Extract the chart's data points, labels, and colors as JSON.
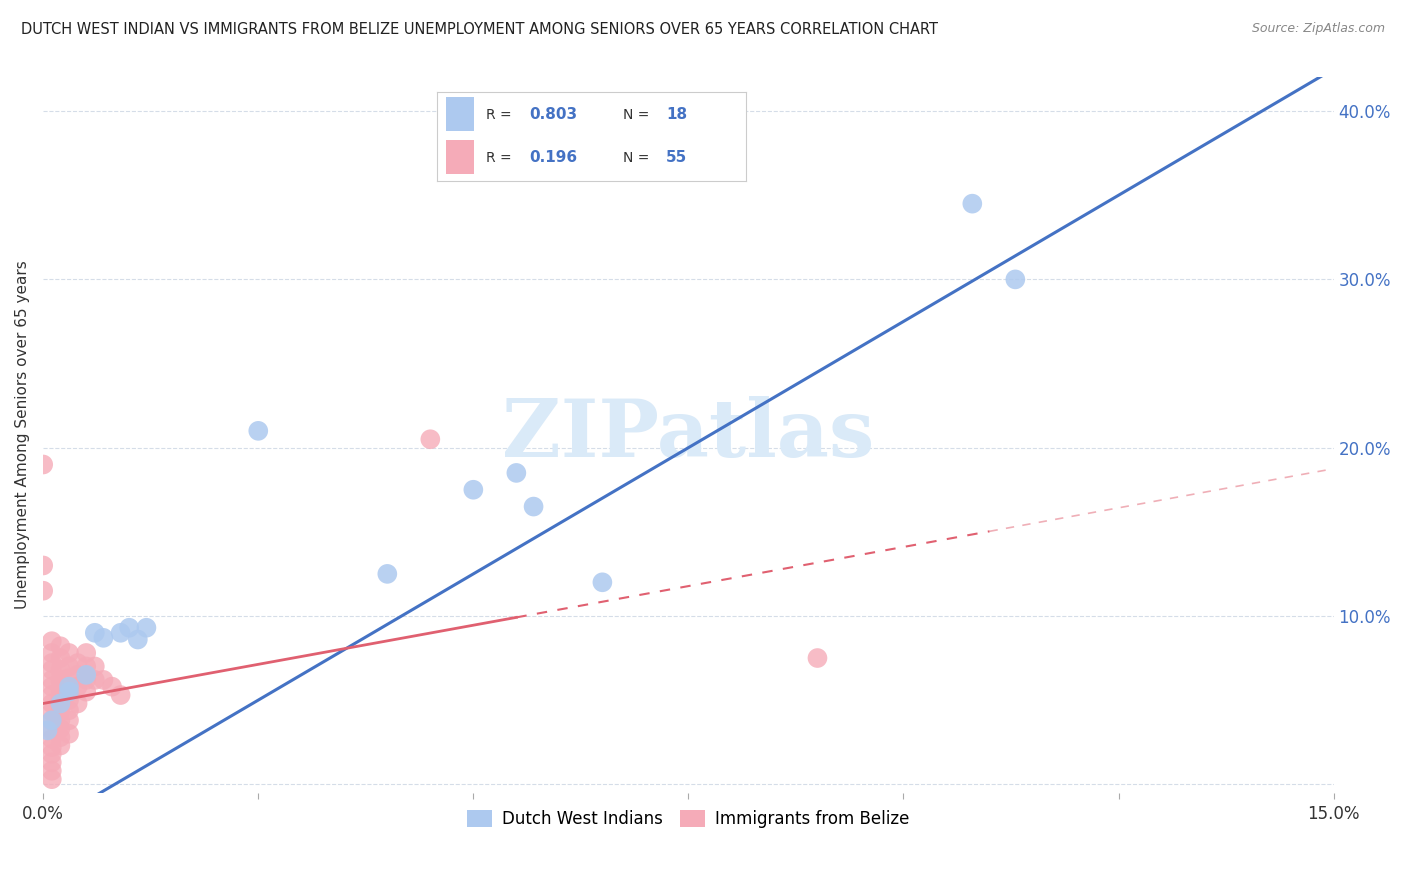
{
  "title": "DUTCH WEST INDIAN VS IMMIGRANTS FROM BELIZE UNEMPLOYMENT AMONG SENIORS OVER 65 YEARS CORRELATION CHART",
  "source": "Source: ZipAtlas.com",
  "ylabel": "Unemployment Among Seniors over 65 years",
  "xmin": 0.0,
  "xmax": 0.15,
  "ymin": -0.005,
  "ymax": 0.42,
  "xticks": [
    0.0,
    0.025,
    0.05,
    0.075,
    0.1,
    0.125,
    0.15
  ],
  "xtick_labels": [
    "0.0%",
    "",
    "",
    "",
    "",
    "",
    "15.0%"
  ],
  "ytick_positions": [
    0.0,
    0.1,
    0.2,
    0.3,
    0.4
  ],
  "ytick_labels_right": [
    "",
    "10.0%",
    "20.0%",
    "30.0%",
    "40.0%"
  ],
  "blue_color": "#adc9ef",
  "pink_color": "#f5abb8",
  "blue_line_color": "#4472c4",
  "pink_line_color": "#e06070",
  "blue_line_intercept": -0.025,
  "blue_line_slope": 3.0,
  "pink_line_intercept": 0.048,
  "pink_line_slope": 0.93,
  "pink_line_xend": 0.11,
  "blue_scatter": [
    [
      0.0005,
      0.032
    ],
    [
      0.001,
      0.038
    ],
    [
      0.002,
      0.048
    ],
    [
      0.003,
      0.055
    ],
    [
      0.003,
      0.058
    ],
    [
      0.005,
      0.065
    ],
    [
      0.006,
      0.09
    ],
    [
      0.007,
      0.087
    ],
    [
      0.009,
      0.09
    ],
    [
      0.01,
      0.093
    ],
    [
      0.011,
      0.086
    ],
    [
      0.012,
      0.093
    ],
    [
      0.025,
      0.21
    ],
    [
      0.04,
      0.125
    ],
    [
      0.05,
      0.175
    ],
    [
      0.055,
      0.185
    ],
    [
      0.057,
      0.165
    ],
    [
      0.065,
      0.12
    ],
    [
      0.108,
      0.345
    ],
    [
      0.113,
      0.3
    ]
  ],
  "pink_scatter": [
    [
      0.0,
      0.19
    ],
    [
      0.0,
      0.13
    ],
    [
      0.0,
      0.115
    ],
    [
      0.001,
      0.085
    ],
    [
      0.001,
      0.078
    ],
    [
      0.001,
      0.072
    ],
    [
      0.001,
      0.068
    ],
    [
      0.001,
      0.062
    ],
    [
      0.001,
      0.058
    ],
    [
      0.001,
      0.053
    ],
    [
      0.001,
      0.048
    ],
    [
      0.001,
      0.043
    ],
    [
      0.001,
      0.038
    ],
    [
      0.001,
      0.032
    ],
    [
      0.001,
      0.027
    ],
    [
      0.001,
      0.022
    ],
    [
      0.001,
      0.018
    ],
    [
      0.001,
      0.013
    ],
    [
      0.001,
      0.008
    ],
    [
      0.001,
      0.003
    ],
    [
      0.002,
      0.082
    ],
    [
      0.002,
      0.075
    ],
    [
      0.002,
      0.068
    ],
    [
      0.002,
      0.062
    ],
    [
      0.002,
      0.057
    ],
    [
      0.002,
      0.052
    ],
    [
      0.002,
      0.047
    ],
    [
      0.002,
      0.043
    ],
    [
      0.002,
      0.038
    ],
    [
      0.002,
      0.033
    ],
    [
      0.002,
      0.028
    ],
    [
      0.002,
      0.023
    ],
    [
      0.003,
      0.078
    ],
    [
      0.003,
      0.07
    ],
    [
      0.003,
      0.063
    ],
    [
      0.003,
      0.057
    ],
    [
      0.003,
      0.05
    ],
    [
      0.003,
      0.044
    ],
    [
      0.003,
      0.038
    ],
    [
      0.003,
      0.03
    ],
    [
      0.004,
      0.072
    ],
    [
      0.004,
      0.065
    ],
    [
      0.004,
      0.058
    ],
    [
      0.004,
      0.048
    ],
    [
      0.005,
      0.078
    ],
    [
      0.005,
      0.07
    ],
    [
      0.005,
      0.062
    ],
    [
      0.005,
      0.055
    ],
    [
      0.006,
      0.07
    ],
    [
      0.006,
      0.062
    ],
    [
      0.007,
      0.062
    ],
    [
      0.008,
      0.058
    ],
    [
      0.009,
      0.053
    ],
    [
      0.045,
      0.205
    ],
    [
      0.09,
      0.075
    ]
  ],
  "watermark_text": "ZIPatlas",
  "watermark_color": "#daeaf8",
  "grid_color": "#d5dde8",
  "background_color": "#ffffff",
  "title_color": "#222222",
  "source_color": "#888888",
  "ylabel_color": "#333333",
  "right_tick_color": "#4472c4",
  "legend_box_color": "#ffffff",
  "legend_border_color": "#cccccc",
  "legend_text_color": "#333333",
  "legend_value_color": "#4472c4"
}
